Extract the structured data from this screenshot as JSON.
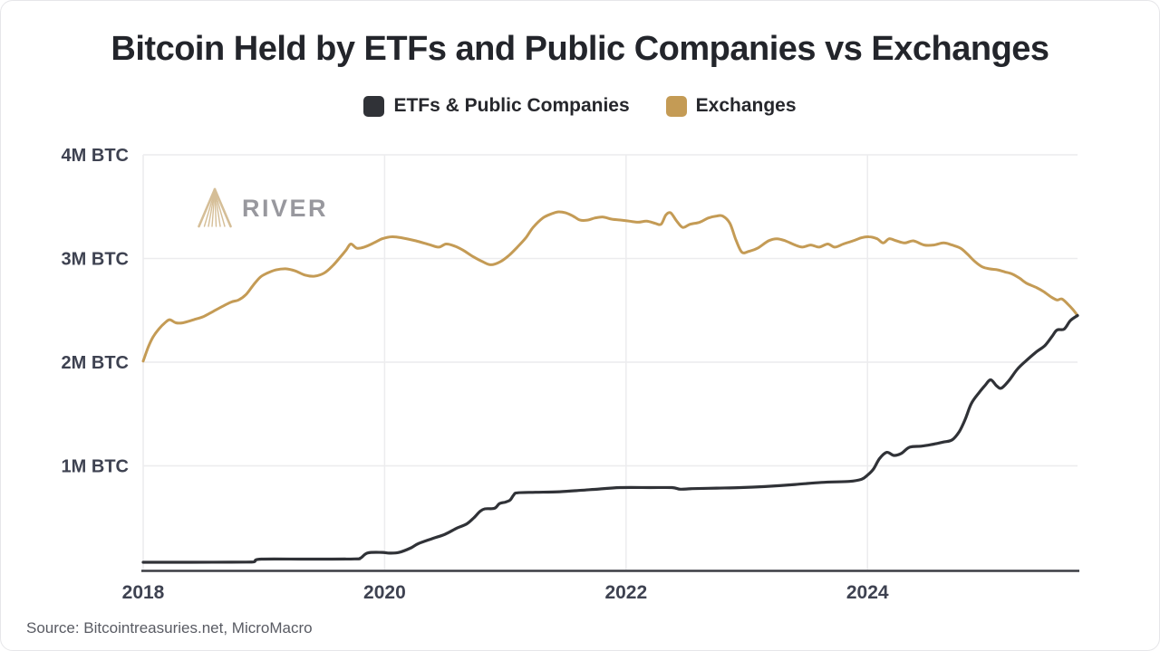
{
  "title": "Bitcoin Held by ETFs and Public Companies vs Exchanges",
  "watermark": {
    "brand": "RIVER"
  },
  "source_note": "Source: Bitcointreasuries.net, MicroMacro",
  "colors": {
    "etfs_line": "#303237",
    "exchanges_line": "#c49b55",
    "gridline": "#ececee",
    "axis_line": "#3b3d43",
    "watermark_gold": "#d5be97",
    "watermark_gray": "#98989e"
  },
  "chart_data": {
    "type": "line",
    "title": "Bitcoin Held by ETFs and Public Companies vs Exchanges",
    "xlabel": "",
    "ylabel": "",
    "unit": "M BTC",
    "grid": true,
    "legend_position": "top-center",
    "xlim": [
      2018,
      2025.74
    ],
    "ylim": [
      0,
      4
    ],
    "xticks": [
      {
        "value": 2018,
        "label": "2018"
      },
      {
        "value": 2020,
        "label": "2020"
      },
      {
        "value": 2022,
        "label": "2022"
      },
      {
        "value": 2024,
        "label": "2024"
      }
    ],
    "yticks": [
      {
        "value": 1,
        "label": "1M BTC"
      },
      {
        "value": 2,
        "label": "2M BTC"
      },
      {
        "value": 3,
        "label": "3M BTC"
      },
      {
        "value": 4,
        "label": "4M BTC"
      }
    ],
    "series": [
      {
        "name": "ETFs & Public Companies",
        "color": "#303237",
        "points": [
          [
            2018.0,
            0.07
          ],
          [
            2018.4,
            0.07
          ],
          [
            2018.85,
            0.072
          ],
          [
            2018.92,
            0.075
          ],
          [
            2018.98,
            0.1
          ],
          [
            2019.4,
            0.1
          ],
          [
            2019.75,
            0.102
          ],
          [
            2019.8,
            0.11
          ],
          [
            2019.86,
            0.16
          ],
          [
            2019.98,
            0.165
          ],
          [
            2020.04,
            0.158
          ],
          [
            2020.12,
            0.165
          ],
          [
            2020.22,
            0.21
          ],
          [
            2020.28,
            0.25
          ],
          [
            2020.4,
            0.3
          ],
          [
            2020.5,
            0.34
          ],
          [
            2020.6,
            0.4
          ],
          [
            2020.68,
            0.44
          ],
          [
            2020.74,
            0.5
          ],
          [
            2020.79,
            0.56
          ],
          [
            2020.83,
            0.585
          ],
          [
            2020.91,
            0.59
          ],
          [
            2020.95,
            0.635
          ],
          [
            2021.0,
            0.65
          ],
          [
            2021.04,
            0.67
          ],
          [
            2021.07,
            0.72
          ],
          [
            2021.1,
            0.74
          ],
          [
            2021.25,
            0.745
          ],
          [
            2021.45,
            0.75
          ],
          [
            2021.7,
            0.77
          ],
          [
            2021.95,
            0.79
          ],
          [
            2022.2,
            0.79
          ],
          [
            2022.38,
            0.79
          ],
          [
            2022.45,
            0.775
          ],
          [
            2022.55,
            0.78
          ],
          [
            2022.75,
            0.785
          ],
          [
            2022.95,
            0.79
          ],
          [
            2023.15,
            0.8
          ],
          [
            2023.4,
            0.82
          ],
          [
            2023.62,
            0.84
          ],
          [
            2023.85,
            0.85
          ],
          [
            2023.95,
            0.87
          ],
          [
            2024.0,
            0.91
          ],
          [
            2024.05,
            0.97
          ],
          [
            2024.1,
            1.07
          ],
          [
            2024.16,
            1.13
          ],
          [
            2024.22,
            1.1
          ],
          [
            2024.28,
            1.12
          ],
          [
            2024.35,
            1.18
          ],
          [
            2024.45,
            1.19
          ],
          [
            2024.55,
            1.21
          ],
          [
            2024.63,
            1.23
          ],
          [
            2024.7,
            1.25
          ],
          [
            2024.76,
            1.33
          ],
          [
            2024.81,
            1.45
          ],
          [
            2024.86,
            1.6
          ],
          [
            2024.92,
            1.7
          ],
          [
            2024.97,
            1.77
          ],
          [
            2025.02,
            1.83
          ],
          [
            2025.07,
            1.77
          ],
          [
            2025.11,
            1.75
          ],
          [
            2025.17,
            1.82
          ],
          [
            2025.24,
            1.93
          ],
          [
            2025.31,
            2.01
          ],
          [
            2025.4,
            2.1
          ],
          [
            2025.47,
            2.16
          ],
          [
            2025.53,
            2.25
          ],
          [
            2025.57,
            2.31
          ],
          [
            2025.63,
            2.32
          ],
          [
            2025.68,
            2.4
          ],
          [
            2025.74,
            2.45
          ]
        ]
      },
      {
        "name": "Exchanges",
        "color": "#c49b55",
        "points": [
          [
            2018.0,
            2.01
          ],
          [
            2018.04,
            2.14
          ],
          [
            2018.08,
            2.24
          ],
          [
            2018.13,
            2.32
          ],
          [
            2018.18,
            2.38
          ],
          [
            2018.22,
            2.41
          ],
          [
            2018.27,
            2.38
          ],
          [
            2018.33,
            2.38
          ],
          [
            2018.42,
            2.41
          ],
          [
            2018.5,
            2.44
          ],
          [
            2018.58,
            2.49
          ],
          [
            2018.66,
            2.54
          ],
          [
            2018.73,
            2.58
          ],
          [
            2018.79,
            2.6
          ],
          [
            2018.85,
            2.65
          ],
          [
            2018.91,
            2.74
          ],
          [
            2018.97,
            2.82
          ],
          [
            2019.03,
            2.86
          ],
          [
            2019.1,
            2.89
          ],
          [
            2019.18,
            2.9
          ],
          [
            2019.26,
            2.88
          ],
          [
            2019.34,
            2.84
          ],
          [
            2019.42,
            2.83
          ],
          [
            2019.5,
            2.86
          ],
          [
            2019.57,
            2.93
          ],
          [
            2019.63,
            3.01
          ],
          [
            2019.68,
            3.08
          ],
          [
            2019.72,
            3.14
          ],
          [
            2019.77,
            3.1
          ],
          [
            2019.83,
            3.11
          ],
          [
            2019.91,
            3.15
          ],
          [
            2019.98,
            3.19
          ],
          [
            2020.06,
            3.21
          ],
          [
            2020.14,
            3.2
          ],
          [
            2020.26,
            3.17
          ],
          [
            2020.38,
            3.13
          ],
          [
            2020.45,
            3.11
          ],
          [
            2020.51,
            3.14
          ],
          [
            2020.58,
            3.12
          ],
          [
            2020.65,
            3.08
          ],
          [
            2020.73,
            3.02
          ],
          [
            2020.81,
            2.97
          ],
          [
            2020.88,
            2.94
          ],
          [
            2020.96,
            2.97
          ],
          [
            2021.03,
            3.03
          ],
          [
            2021.1,
            3.11
          ],
          [
            2021.17,
            3.2
          ],
          [
            2021.23,
            3.3
          ],
          [
            2021.31,
            3.39
          ],
          [
            2021.38,
            3.43
          ],
          [
            2021.44,
            3.45
          ],
          [
            2021.5,
            3.44
          ],
          [
            2021.56,
            3.41
          ],
          [
            2021.62,
            3.37
          ],
          [
            2021.68,
            3.37
          ],
          [
            2021.74,
            3.39
          ],
          [
            2021.81,
            3.4
          ],
          [
            2021.88,
            3.38
          ],
          [
            2021.96,
            3.37
          ],
          [
            2022.03,
            3.36
          ],
          [
            2022.1,
            3.35
          ],
          [
            2022.17,
            3.36
          ],
          [
            2022.24,
            3.34
          ],
          [
            2022.29,
            3.33
          ],
          [
            2022.33,
            3.42
          ],
          [
            2022.37,
            3.44
          ],
          [
            2022.42,
            3.36
          ],
          [
            2022.47,
            3.3
          ],
          [
            2022.53,
            3.33
          ],
          [
            2022.61,
            3.35
          ],
          [
            2022.68,
            3.39
          ],
          [
            2022.75,
            3.41
          ],
          [
            2022.8,
            3.41
          ],
          [
            2022.86,
            3.34
          ],
          [
            2022.91,
            3.18
          ],
          [
            2022.96,
            3.06
          ],
          [
            2023.02,
            3.07
          ],
          [
            2023.09,
            3.1
          ],
          [
            2023.18,
            3.17
          ],
          [
            2023.25,
            3.19
          ],
          [
            2023.32,
            3.17
          ],
          [
            2023.4,
            3.13
          ],
          [
            2023.46,
            3.11
          ],
          [
            2023.53,
            3.13
          ],
          [
            2023.6,
            3.11
          ],
          [
            2023.67,
            3.14
          ],
          [
            2023.73,
            3.11
          ],
          [
            2023.8,
            3.14
          ],
          [
            2023.88,
            3.17
          ],
          [
            2023.95,
            3.2
          ],
          [
            2024.01,
            3.21
          ],
          [
            2024.08,
            3.19
          ],
          [
            2024.13,
            3.15
          ],
          [
            2024.18,
            3.19
          ],
          [
            2024.24,
            3.17
          ],
          [
            2024.31,
            3.15
          ],
          [
            2024.38,
            3.17
          ],
          [
            2024.47,
            3.13
          ],
          [
            2024.55,
            3.13
          ],
          [
            2024.63,
            3.15
          ],
          [
            2024.7,
            3.13
          ],
          [
            2024.77,
            3.1
          ],
          [
            2024.83,
            3.04
          ],
          [
            2024.89,
            2.97
          ],
          [
            2024.95,
            2.92
          ],
          [
            2025.01,
            2.9
          ],
          [
            2025.08,
            2.89
          ],
          [
            2025.14,
            2.87
          ],
          [
            2025.2,
            2.85
          ],
          [
            2025.26,
            2.81
          ],
          [
            2025.32,
            2.76
          ],
          [
            2025.4,
            2.72
          ],
          [
            2025.46,
            2.68
          ],
          [
            2025.52,
            2.63
          ],
          [
            2025.57,
            2.6
          ],
          [
            2025.61,
            2.61
          ],
          [
            2025.66,
            2.56
          ],
          [
            2025.7,
            2.51
          ],
          [
            2025.74,
            2.45
          ]
        ]
      }
    ]
  }
}
